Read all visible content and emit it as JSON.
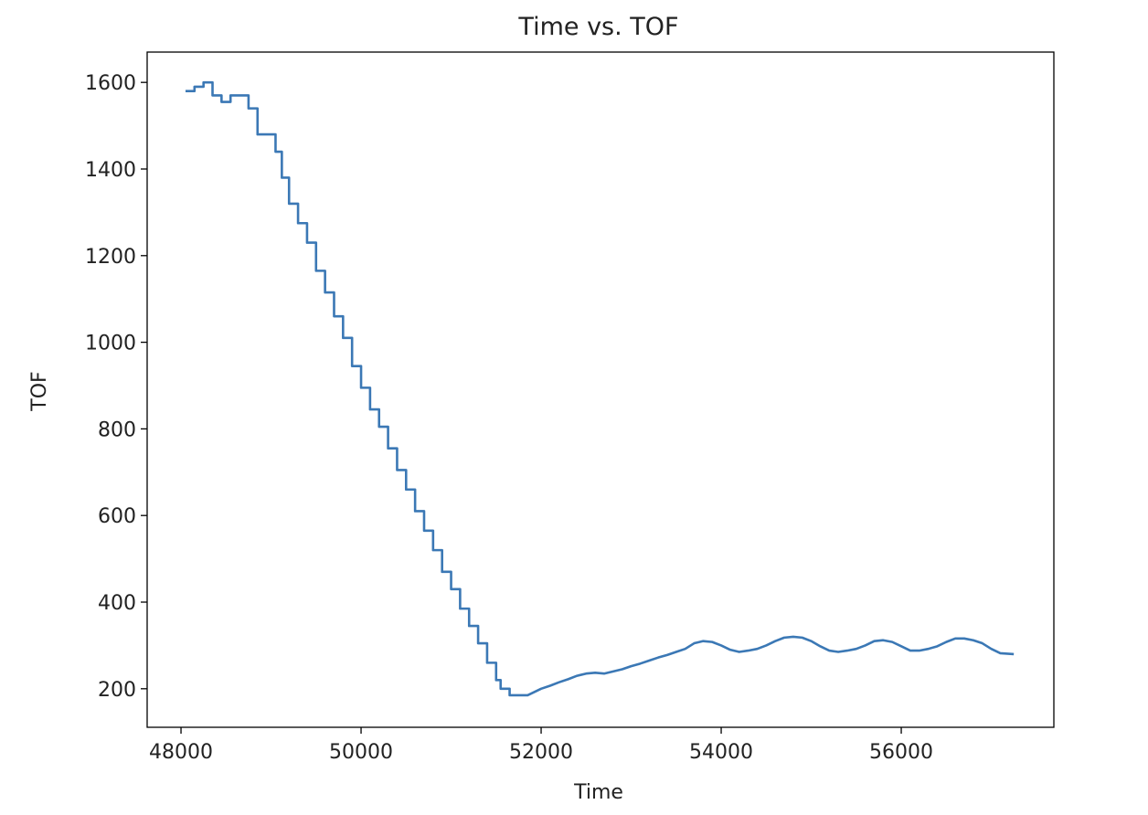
{
  "chart_data": {
    "type": "line",
    "title": "Time vs. TOF",
    "x_label": "Time",
    "y_label": "TOF",
    "x": [
      48050,
      48150,
      48150,
      48250,
      48250,
      48350,
      48350,
      48450,
      48450,
      48550,
      48550,
      48750,
      48750,
      48850,
      48850,
      49050,
      49050,
      49120,
      49120,
      49200,
      49200,
      49300,
      49300,
      49400,
      49400,
      49500,
      49500,
      49600,
      49600,
      49700,
      49700,
      49800,
      49800,
      49900,
      49900,
      50000,
      50000,
      50100,
      50100,
      50200,
      50200,
      50300,
      50300,
      50400,
      50400,
      50500,
      50500,
      50600,
      50600,
      50700,
      50700,
      50800,
      50800,
      50900,
      50900,
      51000,
      51000,
      51100,
      51100,
      51200,
      51200,
      51300,
      51300,
      51400,
      51400,
      51500,
      51500,
      51550,
      51550,
      51650,
      51650,
      51850,
      51900,
      52000,
      52100,
      52200,
      52300,
      52400,
      52500,
      52600,
      52700,
      52800,
      52900,
      53000,
      53100,
      53200,
      53300,
      53400,
      53500,
      53600,
      53700,
      53800,
      53900,
      54000,
      54100,
      54200,
      54300,
      54400,
      54500,
      54600,
      54700,
      54800,
      54900,
      55000,
      55100,
      55200,
      55300,
      55400,
      55500,
      55600,
      55700,
      55800,
      55900,
      56000,
      56100,
      56200,
      56300,
      56400,
      56500,
      56600,
      56700,
      56800,
      56900,
      57000,
      57100,
      57250
    ],
    "series": [
      {
        "color": "#3b78b5",
        "values": [
          1580,
          1580,
          1590,
          1590,
          1600,
          1600,
          1570,
          1570,
          1555,
          1555,
          1570,
          1570,
          1540,
          1540,
          1480,
          1480,
          1440,
          1440,
          1380,
          1380,
          1320,
          1320,
          1275,
          1275,
          1230,
          1230,
          1165,
          1165,
          1115,
          1115,
          1060,
          1060,
          1010,
          1010,
          945,
          945,
          895,
          895,
          845,
          845,
          805,
          805,
          755,
          755,
          705,
          705,
          660,
          660,
          610,
          610,
          565,
          565,
          520,
          520,
          470,
          470,
          430,
          430,
          385,
          385,
          345,
          345,
          305,
          305,
          260,
          260,
          220,
          220,
          200,
          200,
          185,
          185,
          190,
          200,
          207,
          215,
          222,
          230,
          235,
          237,
          235,
          240,
          245,
          252,
          258,
          265,
          272,
          278,
          285,
          292,
          305,
          310,
          308,
          300,
          290,
          285,
          288,
          292,
          300,
          310,
          318,
          320,
          318,
          310,
          298,
          288,
          285,
          288,
          292,
          300,
          310,
          312,
          308,
          298,
          288,
          288,
          292,
          298,
          308,
          316,
          316,
          312,
          305,
          292,
          282,
          280
        ]
      }
    ],
    "xlim": [
      47624,
      57695
    ],
    "ylim": [
      111,
      1670
    ],
    "xticks": [
      48000,
      50000,
      52000,
      54000,
      56000
    ],
    "yticks": [
      200,
      400,
      600,
      800,
      1000,
      1200,
      1400,
      1600
    ]
  }
}
